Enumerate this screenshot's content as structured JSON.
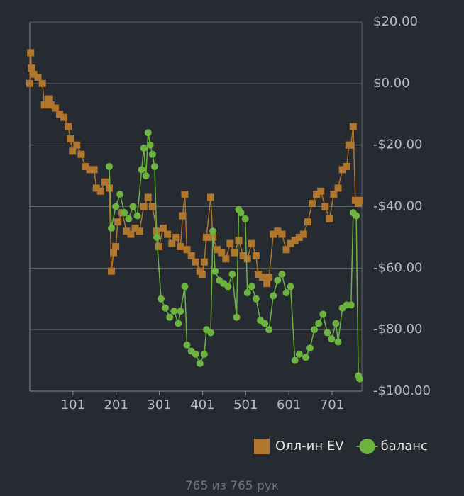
{
  "chart_data": {
    "type": "line",
    "xlim": [
      1,
      770
    ],
    "xticks": [
      101,
      201,
      301,
      401,
      501,
      601,
      701
    ],
    "ylim": [
      -100,
      20
    ],
    "yticks": [
      {
        "value": -100,
        "label": "-$100.00"
      },
      {
        "value": -80,
        "label": "-$80.00"
      },
      {
        "value": -60,
        "label": "-$60.00"
      },
      {
        "value": -40,
        "label": "-$40.00"
      },
      {
        "value": -20,
        "label": "-$20.00"
      },
      {
        "value": 0,
        "label": "$0.00"
      },
      {
        "value": 20,
        "label": "$20.00"
      }
    ],
    "grid": true,
    "y_axis_side": "right",
    "legend": "bottom-right",
    "series": [
      {
        "name": "Олл-ин EV",
        "color": "#b0762e",
        "marker": "square",
        "x": [
          1,
          3,
          5,
          10,
          20,
          30,
          35,
          45,
          50,
          60,
          70,
          80,
          90,
          95,
          100,
          110,
          120,
          130,
          140,
          150,
          155,
          165,
          175,
          185,
          190,
          195,
          200,
          205,
          215,
          225,
          235,
          245,
          255,
          265,
          275,
          285,
          295,
          300,
          310,
          320,
          330,
          340,
          350,
          355,
          360,
          365,
          375,
          385,
          395,
          400,
          405,
          410,
          420,
          425,
          435,
          445,
          455,
          465,
          475,
          485,
          495,
          505,
          515,
          525,
          530,
          540,
          550,
          555,
          565,
          575,
          585,
          595,
          605,
          615,
          625,
          635,
          645,
          655,
          665,
          675,
          685,
          695,
          705,
          715,
          725,
          735,
          740,
          745,
          750,
          755,
          762,
          765
        ],
        "values": [
          0,
          10,
          5,
          3,
          2,
          0,
          -7,
          -5,
          -7,
          -8,
          -10,
          -11,
          -14,
          -18,
          -22,
          -20,
          -23,
          -27,
          -28,
          -28,
          -34,
          -35,
          -32,
          -34,
          -61,
          -55,
          -53,
          -45,
          -42,
          -48,
          -49,
          -47,
          -48,
          -40,
          -37,
          -40,
          -48,
          -53,
          -47,
          -49,
          -52,
          -50,
          -53,
          -43,
          -36,
          -54,
          -56,
          -58,
          -61,
          -62,
          -58,
          -50,
          -37,
          -50,
          -54,
          -55,
          -57,
          -52,
          -55,
          -51,
          -56,
          -57,
          -52,
          -56,
          -62,
          -63,
          -65,
          -63,
          -49,
          -48,
          -49,
          -54,
          -52,
          -51,
          -50,
          -49,
          -45,
          -39,
          -36,
          -35,
          -40,
          -44,
          -36,
          -34,
          -28,
          -27,
          -20,
          -20,
          -14,
          -38,
          -39,
          -38
        ]
      },
      {
        "name": "баланс",
        "color": "#6db33f",
        "marker": "circle",
        "x": [
          185,
          190,
          200,
          210,
          220,
          230,
          240,
          250,
          260,
          265,
          270,
          275,
          280,
          285,
          290,
          295,
          305,
          315,
          325,
          335,
          345,
          350,
          360,
          365,
          375,
          385,
          395,
          405,
          410,
          420,
          425,
          430,
          440,
          450,
          460,
          470,
          480,
          485,
          490,
          500,
          505,
          515,
          525,
          535,
          545,
          555,
          565,
          575,
          585,
          595,
          605,
          615,
          625,
          640,
          650,
          660,
          670,
          680,
          690,
          700,
          710,
          715,
          725,
          735,
          745,
          750,
          757,
          762,
          765
        ],
        "values": [
          -27,
          -47,
          -40,
          -36,
          -42,
          -44,
          -40,
          -43,
          -28,
          -21,
          -30,
          -16,
          -20,
          -23,
          -27,
          -50,
          -70,
          -73,
          -76,
          -74,
          -78,
          -74,
          -66,
          -85,
          -87,
          -88,
          -91,
          -88,
          -80,
          -81,
          -48,
          -61,
          -64,
          -65,
          -66,
          -62,
          -76,
          -41,
          -42,
          -44,
          -68,
          -66,
          -70,
          -77,
          -78,
          -80,
          -69,
          -64,
          -62,
          -68,
          -66,
          -90,
          -88,
          -89,
          -86,
          -80,
          -78,
          -75,
          -81,
          -83,
          -78,
          -84,
          -73,
          -72,
          -72,
          -42,
          -43,
          -95,
          -96
        ]
      }
    ]
  },
  "footer": "765 из 765 рук"
}
